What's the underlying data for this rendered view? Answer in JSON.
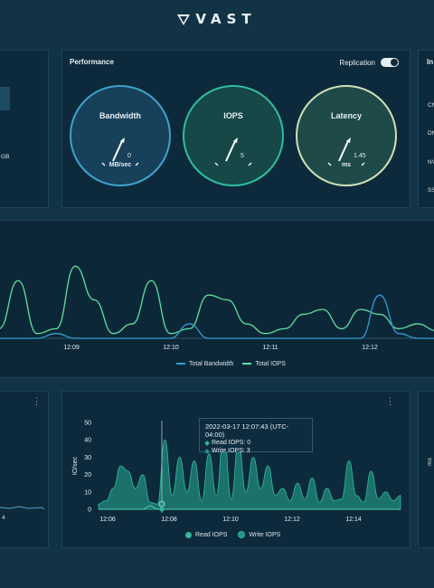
{
  "brand": {
    "name": "VAST"
  },
  "left_panel": {
    "capacity_fragment": "GB"
  },
  "performance": {
    "title": "Performance",
    "replication_label": "Replication",
    "gauges": [
      {
        "label": "Bandwidth",
        "value": "0",
        "unit": "MB/sec",
        "color": "#3fa3c9",
        "fill": "#17405a"
      },
      {
        "label": "IOPS",
        "value": "5",
        "unit": "",
        "color": "#2fbfa0",
        "fill": "#154846"
      },
      {
        "label": "Latency",
        "value": "1.45",
        "unit": "ms",
        "color": "#cfe0b4",
        "fill": "#1f4a4a"
      }
    ]
  },
  "right_panel": {
    "title_fragment": "In",
    "items": [
      "CN",
      "DN",
      "NV",
      "SS"
    ]
  },
  "main_chart": {
    "x_ticks": [
      "12:09",
      "12:10",
      "12:11",
      "12:12"
    ],
    "legend": [
      {
        "name": "Total Bandwidth",
        "color": "#2f9fd0"
      },
      {
        "name": "Total IOPS",
        "color": "#5fe0a0"
      }
    ]
  },
  "bottom_left": {
    "x_tick_fragment": "4"
  },
  "iops_chart": {
    "y_label": "IO/sec",
    "y_ticks": [
      "50",
      "40",
      "30",
      "20",
      "10",
      "0"
    ],
    "x_ticks": [
      "12:06",
      "12:08",
      "12:10",
      "12:12",
      "12:14"
    ],
    "tooltip": {
      "time": "2022-03-17 12:07:43 (UTC-04:00)",
      "read": "Read IOPS: 0",
      "write": "Write IOPS: 3"
    },
    "legend": [
      {
        "name": "Read IOPS",
        "color": "#2fb99a"
      },
      {
        "name": "Write IOPS",
        "color": "#2a8f86"
      }
    ]
  },
  "bottom_right": {
    "unit_fragment": "ms"
  },
  "chart_data": [
    {
      "type": "line",
      "title": "",
      "x": [
        "12:08:40",
        "12:08:50",
        "12:09:00",
        "12:09:10",
        "12:09:20",
        "12:09:30",
        "12:09:40",
        "12:09:50",
        "12:10:00",
        "12:10:10",
        "12:10:20",
        "12:10:30",
        "12:10:40",
        "12:10:50",
        "12:11:00",
        "12:11:10",
        "12:11:20",
        "12:11:30",
        "12:11:40",
        "12:11:50",
        "12:12:00",
        "12:12:10",
        "12:12:20",
        "12:12:30"
      ],
      "x_ticks": [
        "12:09",
        "12:10",
        "12:11",
        "12:12"
      ],
      "series": [
        {
          "name": "Total IOPS",
          "values": [
            10,
            60,
            5,
            10,
            75,
            40,
            5,
            15,
            60,
            5,
            10,
            45,
            40,
            15,
            5,
            10,
            25,
            30,
            10,
            30,
            25,
            10,
            15,
            8
          ]
        },
        {
          "name": "Total Bandwidth",
          "values": [
            0,
            0,
            0,
            5,
            0,
            0,
            0,
            0,
            0,
            0,
            15,
            0,
            0,
            0,
            0,
            0,
            0,
            0,
            0,
            0,
            45,
            5,
            0,
            0
          ]
        }
      ]
    },
    {
      "type": "area",
      "title": "",
      "xlabel": "",
      "ylabel": "IO/sec",
      "ylim": [
        0,
        50
      ],
      "x_ticks": [
        "12:06",
        "12:08",
        "12:10",
        "12:12",
        "12:14"
      ],
      "series": [
        {
          "name": "Read IOPS",
          "values": [
            0,
            0,
            0,
            0,
            0,
            0,
            0,
            2,
            0,
            0,
            0,
            0,
            0,
            0,
            0,
            0,
            0,
            0,
            0,
            0,
            0,
            0,
            0,
            0,
            0,
            0,
            0,
            0,
            0,
            0,
            0,
            0,
            0,
            0,
            0,
            0,
            0,
            0,
            0,
            0,
            0,
            0
          ]
        },
        {
          "name": "Write IOPS",
          "values": [
            3,
            5,
            12,
            25,
            22,
            12,
            20,
            4,
            3,
            40,
            8,
            30,
            10,
            28,
            5,
            32,
            8,
            45,
            6,
            38,
            10,
            30,
            12,
            25,
            8,
            12,
            5,
            15,
            6,
            18,
            4,
            12,
            5,
            6,
            28,
            8,
            4,
            22,
            6,
            10,
            5,
            8
          ]
        }
      ]
    }
  ]
}
